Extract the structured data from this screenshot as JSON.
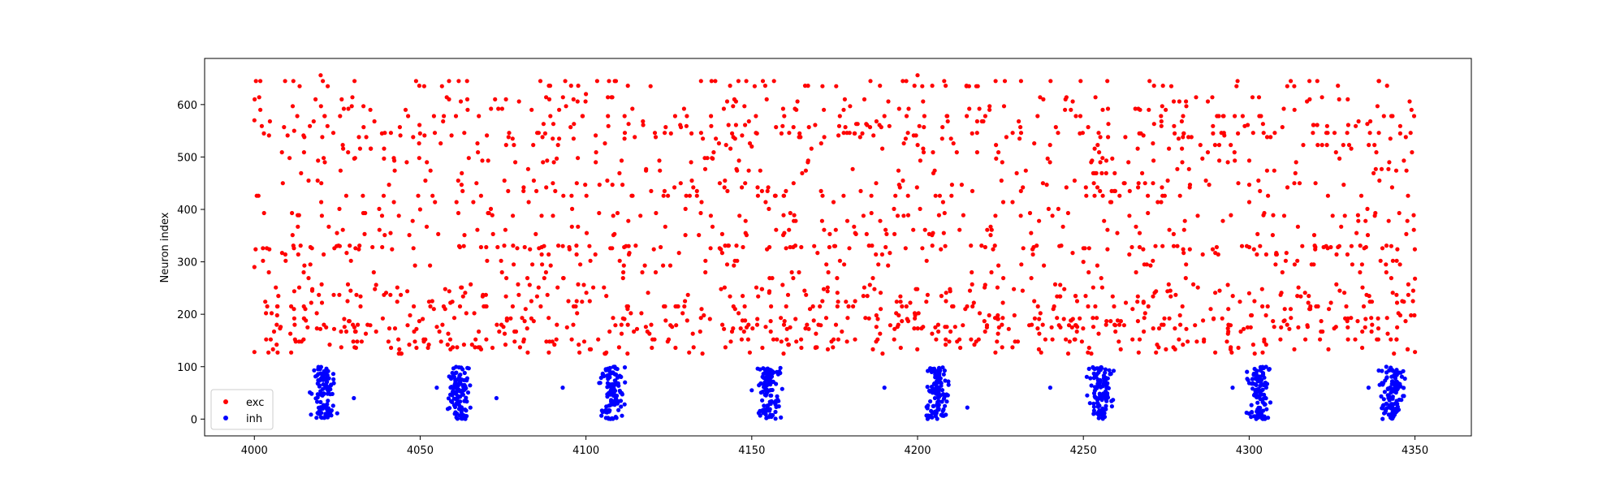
{
  "chart_data": {
    "type": "scatter",
    "title": "",
    "xlabel": "",
    "ylabel": "Neuron index",
    "xlim": [
      3985,
      4367
    ],
    "ylim": [
      -32,
      688
    ],
    "xticks": [
      4000,
      4050,
      4100,
      4150,
      4200,
      4250,
      4300,
      4350
    ],
    "yticks": [
      0,
      100,
      200,
      300,
      400,
      500,
      600
    ],
    "grid": false,
    "legend": {
      "position": "lower-left",
      "entries": [
        "exc",
        "inh"
      ]
    },
    "series": [
      {
        "name": "exc",
        "color": "#ff0000",
        "neuron_range": [
          125,
          656
        ],
        "time_range": [
          4000,
          4350
        ],
        "spike_count": 1850,
        "sample_points": [
          [
            4000,
            570
          ],
          [
            4000,
            290
          ],
          [
            4000,
            128
          ],
          [
            4012,
            550
          ],
          [
            4020,
            656
          ],
          [
            4050,
            400
          ],
          [
            4100,
            620
          ],
          [
            4150,
            520
          ],
          [
            4200,
            656
          ],
          [
            4250,
            300
          ],
          [
            4300,
            240
          ],
          [
            4350,
            268
          ],
          [
            4350,
            128
          ]
        ]
      },
      {
        "name": "inh",
        "color": "#0000ff",
        "neuron_range": [
          0,
          100
        ],
        "time_range": [
          4016,
          4350
        ],
        "burst_centers": [
          4021,
          4062,
          4108,
          4155,
          4206,
          4255,
          4303,
          4343
        ],
        "burst_width": 5,
        "spikes_per_burst": 110,
        "outlier_points": [
          [
            4030,
            40
          ],
          [
            4055,
            60
          ],
          [
            4073,
            40
          ],
          [
            4093,
            60
          ],
          [
            4150,
            55
          ],
          [
            4190,
            60
          ],
          [
            4215,
            22
          ],
          [
            4240,
            60
          ],
          [
            4295,
            60
          ],
          [
            4336,
            60
          ]
        ]
      }
    ]
  }
}
